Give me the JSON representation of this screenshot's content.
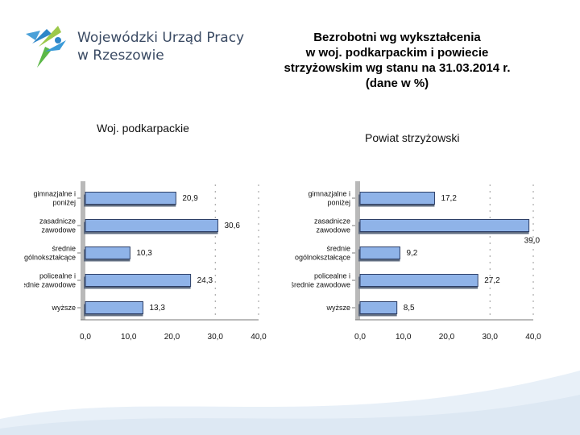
{
  "header": {
    "logo_line1": "Wojewódzki Urząd Pracy",
    "logo_line2": "w Rzeszowie",
    "title_lines": [
      "Bezrobotni wg wykształcenia",
      "w woj. podkarpackim i powiecie",
      "strzyżowskim wg stanu na 31.03.2014 r.",
      "(dane w %)"
    ]
  },
  "colors": {
    "bar": "#8fb3e8",
    "bar_edge": "#2c3e66",
    "axis": "#777777"
  },
  "chart_data": [
    {
      "type": "bar",
      "orientation": "horizontal",
      "title": "Woj. podkarpackie",
      "categories": [
        [
          "gimnazjalne i",
          "poniżej"
        ],
        [
          "zasadnicze",
          "zawodowe"
        ],
        [
          "średnie",
          "ogólnokształcące"
        ],
        [
          "policealne i",
          "średnie zawodowe"
        ],
        [
          "wyższe"
        ]
      ],
      "values": [
        20.9,
        30.6,
        10.3,
        24.3,
        13.3
      ],
      "value_labels": [
        "20,9",
        "30,6",
        "10,3",
        "24,3",
        "13,3"
      ],
      "xlim": [
        0,
        40
      ],
      "ticks": [
        "0,0",
        "10,0",
        "20,0",
        "30,0",
        "40,0"
      ]
    },
    {
      "type": "bar",
      "orientation": "horizontal",
      "title": "Powiat strzyżowski",
      "categories": [
        [
          "gimnazjalne i",
          "poniżej"
        ],
        [
          "zasadnicze",
          "zawodowe"
        ],
        [
          "średnie",
          "ogólnokształcące"
        ],
        [
          "policealne i",
          "średnie zawodowe"
        ],
        [
          "wyższe"
        ]
      ],
      "values": [
        17.2,
        39.0,
        9.2,
        27.2,
        8.5
      ],
      "value_labels": [
        "17,2",
        "39,0",
        "9,2",
        "27,2",
        "8,5"
      ],
      "xlim": [
        0,
        40
      ],
      "ticks": [
        "0,0",
        "10,0",
        "20,0",
        "30,0",
        "40,0"
      ]
    }
  ]
}
